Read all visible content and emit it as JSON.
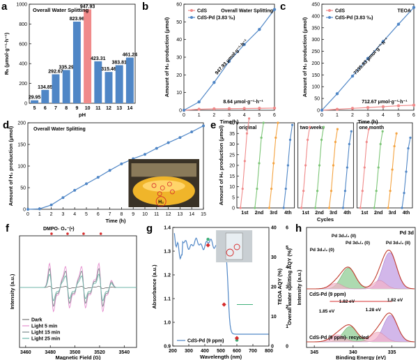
{
  "colors": {
    "bar": "#4f86c6",
    "bar_highlight": "#f08a8a",
    "blue": "#4f86c6",
    "pink": "#f08a8a",
    "red": "#d62b2b",
    "green": "#3fb07a"
  },
  "panel_a": {
    "label": "a",
    "title": "Overall Water Splitting",
    "ylabel": "Rₕ (μmol·g⁻¹·h⁻¹)",
    "xlabel": "pH",
    "chart_data": {
      "type": "bar",
      "categories": [
        "5",
        "6",
        "7",
        "8",
        "9",
        "10",
        "11",
        "12",
        "13",
        "14"
      ],
      "values": [
        29.95,
        134.85,
        292.67,
        335.29,
        823.96,
        947.93,
        423.31,
        315.46,
        383.81,
        461.24
      ],
      "value_labels": [
        "29.95",
        "134.85",
        "292.67",
        "335.29",
        "823.96",
        "947.93",
        "423.31",
        "315.46",
        "383.81",
        "461.24"
      ],
      "highlight": "10",
      "ylim": [
        0,
        1000
      ],
      "yticks": [
        "0",
        "200",
        "400",
        "600",
        "800",
        "1000"
      ]
    }
  },
  "panel_b": {
    "label": "b",
    "title": "Overall Water Splitting",
    "ylabel": "Amount of H₂ production (μmol)",
    "xlabel": "Time(h)",
    "chart_data": {
      "type": "line",
      "x": [
        0,
        1,
        2,
        3,
        4,
        5,
        6
      ],
      "series": [
        {
          "name": "CdS",
          "values": [
            0,
            0.55,
            0.8,
            0.9,
            1.0,
            1.1,
            1.2
          ]
        },
        {
          "name": "CdS-Pd (3.83 ‰)",
          "values": [
            0,
            4.7,
            15.7,
            27.7,
            37.2,
            45.7,
            57
          ]
        }
      ],
      "xlim": [
        0,
        6
      ],
      "ylim": [
        0,
        60
      ],
      "yticks": [
        "0",
        "10",
        "20",
        "30",
        "40",
        "50",
        "60"
      ],
      "xticks": [
        "0",
        "1",
        "2",
        "3",
        "4",
        "5",
        "6"
      ],
      "annotations": [
        "947.93 μmol·g⁻¹·h⁻¹",
        "8.64 μmol·g⁻¹·h⁻¹"
      ]
    }
  },
  "panel_c": {
    "label": "c",
    "title": "TEOA",
    "ylabel": "Amount of H₂ production (μmol)",
    "xlabel": "Time (h)",
    "chart_data": {
      "type": "line",
      "x": [
        0,
        1,
        2,
        3,
        4,
        5,
        6
      ],
      "series": [
        {
          "name": "CdS",
          "values": [
            0,
            4,
            8,
            11.5,
            15,
            19,
            21.5
          ]
        },
        {
          "name": "CdS-Pd (3.83 ‰)",
          "values": [
            0,
            70,
            145,
            220,
            292,
            365,
            436
          ]
        }
      ],
      "xlim": [
        0,
        6
      ],
      "ylim": [
        0,
        450
      ],
      "yticks": [
        "0",
        "50",
        "100",
        "150",
        "200",
        "250",
        "300",
        "350",
        "400",
        "450"
      ],
      "xticks": [
        "0",
        "1",
        "2",
        "3",
        "4",
        "5",
        "6"
      ],
      "annotations": [
        "7335.83 μmol·g⁻¹·h⁻¹",
        "712.67 μmol·g⁻¹·h⁻¹"
      ]
    }
  },
  "panel_d": {
    "label": "d",
    "title": "Overall Water Splitting",
    "ylabel": "Amount of H₂ production (μmol)",
    "xlabel": "Time (h)",
    "inset_label": "H₂",
    "chart_data": {
      "type": "line",
      "x": [
        0,
        1,
        2,
        3,
        4,
        5,
        6,
        7,
        8,
        9,
        10,
        11,
        12,
        13,
        14,
        15
      ],
      "series": [
        {
          "name": "CdS-Pd",
          "values": [
            0,
            1,
            10,
            27,
            44,
            59,
            74,
            90,
            105,
            117,
            127,
            141,
            154,
            166,
            179,
            193
          ]
        }
      ],
      "xlim": [
        0,
        15
      ],
      "ylim": [
        0,
        200
      ],
      "yticks": [
        "0",
        "50",
        "100",
        "150",
        "200"
      ],
      "xticks": [
        "0",
        "1",
        "2",
        "3",
        "4",
        "5",
        "6",
        "7",
        "8",
        "9",
        "10",
        "11",
        "12",
        "13",
        "14",
        "15"
      ]
    }
  },
  "panel_e": {
    "label": "e",
    "ylabel": "Amount of H₂ production (μmol)",
    "xlabel": "Cycles",
    "groups": [
      "original",
      "two weeks",
      "one month"
    ],
    "chart_data": {
      "type": "line",
      "ylim": [
        0,
        40
      ],
      "yticks": [
        "0",
        "5",
        "10",
        "15",
        "20",
        "25",
        "30",
        "35",
        "40"
      ],
      "xticks": [
        "1st",
        "2nd",
        "3rd",
        "4th"
      ],
      "cycle_colors": [
        "#f08a8a",
        "#7cc576",
        "#f4a340",
        "#4f86c6"
      ],
      "groups": [
        [
          [
            0,
            9,
            22,
            35,
            42
          ],
          [
            0,
            9,
            21,
            33,
            40
          ],
          [
            0,
            9,
            21,
            33,
            40
          ],
          [
            0,
            9,
            20,
            32,
            39
          ]
        ],
        [
          [
            0,
            8,
            20,
            32,
            38
          ],
          [
            0,
            8,
            20,
            32,
            38
          ],
          [
            0,
            8,
            20,
            31,
            37
          ],
          [
            0,
            8,
            19,
            30,
            36
          ]
        ],
        [
          [
            0,
            8,
            19,
            31,
            37
          ],
          [
            0,
            8,
            19,
            30,
            36
          ],
          [
            0,
            8,
            18,
            29,
            35
          ],
          [
            0,
            7,
            17,
            28,
            33
          ]
        ]
      ]
    }
  },
  "panel_f": {
    "label": "f",
    "title": "DMPO- O₂⁻(•)",
    "ylabel": "Intensity (a.u.)",
    "xlabel": "Magnetic Field (G)",
    "chart_data": {
      "type": "line",
      "xlim": [
        3455,
        3550
      ],
      "xticks": [
        "3460",
        "3480",
        "3500",
        "3520",
        "3540"
      ],
      "series": [
        {
          "name": "Dark"
        },
        {
          "name": "Light 5 min"
        },
        {
          "name": "Light 15 min"
        },
        {
          "name": "Light 25 min"
        }
      ]
    }
  },
  "panel_g": {
    "label": "g",
    "ylabel": "Absorbance (a.u.)",
    "ylabel2": "TEOA AQY (%)",
    "ylabel3": "Overall water splitting AQY (%)",
    "xlabel": "Wavelength (nm)",
    "legend": "CdS-Pd (9 ppm)",
    "chart_data": {
      "type": "line",
      "xlim": [
        200,
        800
      ],
      "ylim": [
        0.9,
        1.4
      ],
      "xticks": [
        "200",
        "300",
        "400",
        "500",
        "600",
        "700",
        "800"
      ],
      "yticks": [
        "0.9",
        "1.0",
        "1.1",
        "1.2",
        "1.3",
        "1.4"
      ],
      "y2ticks": [
        "0",
        "10",
        "20",
        "30",
        "40"
      ],
      "y3ticks": [
        "0",
        "1",
        "2",
        "3",
        "4",
        "5",
        "6"
      ],
      "aqy_teoa": [
        {
          "x": 420,
          "y": 36
        },
        {
          "x": 520,
          "y": 33
        },
        {
          "x": 600,
          "y": 2
        }
      ],
      "aqy_ows": [
        {
          "x": 420,
          "y": 5.1
        },
        {
          "x": 520,
          "y": 2.1
        },
        {
          "x": 600,
          "y": 0.4
        }
      ]
    }
  },
  "panel_h": {
    "label": "h",
    "title": "Pd 3d",
    "ylabel": "Intensity (a.u.)",
    "xlabel": "Binding Energy (eV)",
    "chart_data": {
      "type": "line",
      "xlim": [
        346,
        332
      ],
      "xticks": [
        "345",
        "340",
        "335"
      ],
      "labels": [
        "Pd 3d₃/₂ (II)",
        "Pd 3d₅/₂ (0)",
        "Pd 3d₃/₂ (0)",
        "Pd 3d₅/₂ (II)",
        "CdS-Pd (9 ppm)",
        "CdS-Pd (9 ppm)- recycled",
        "1.82 eV",
        "1.85 eV",
        "1.28 eV",
        "1.82 eV"
      ]
    }
  }
}
